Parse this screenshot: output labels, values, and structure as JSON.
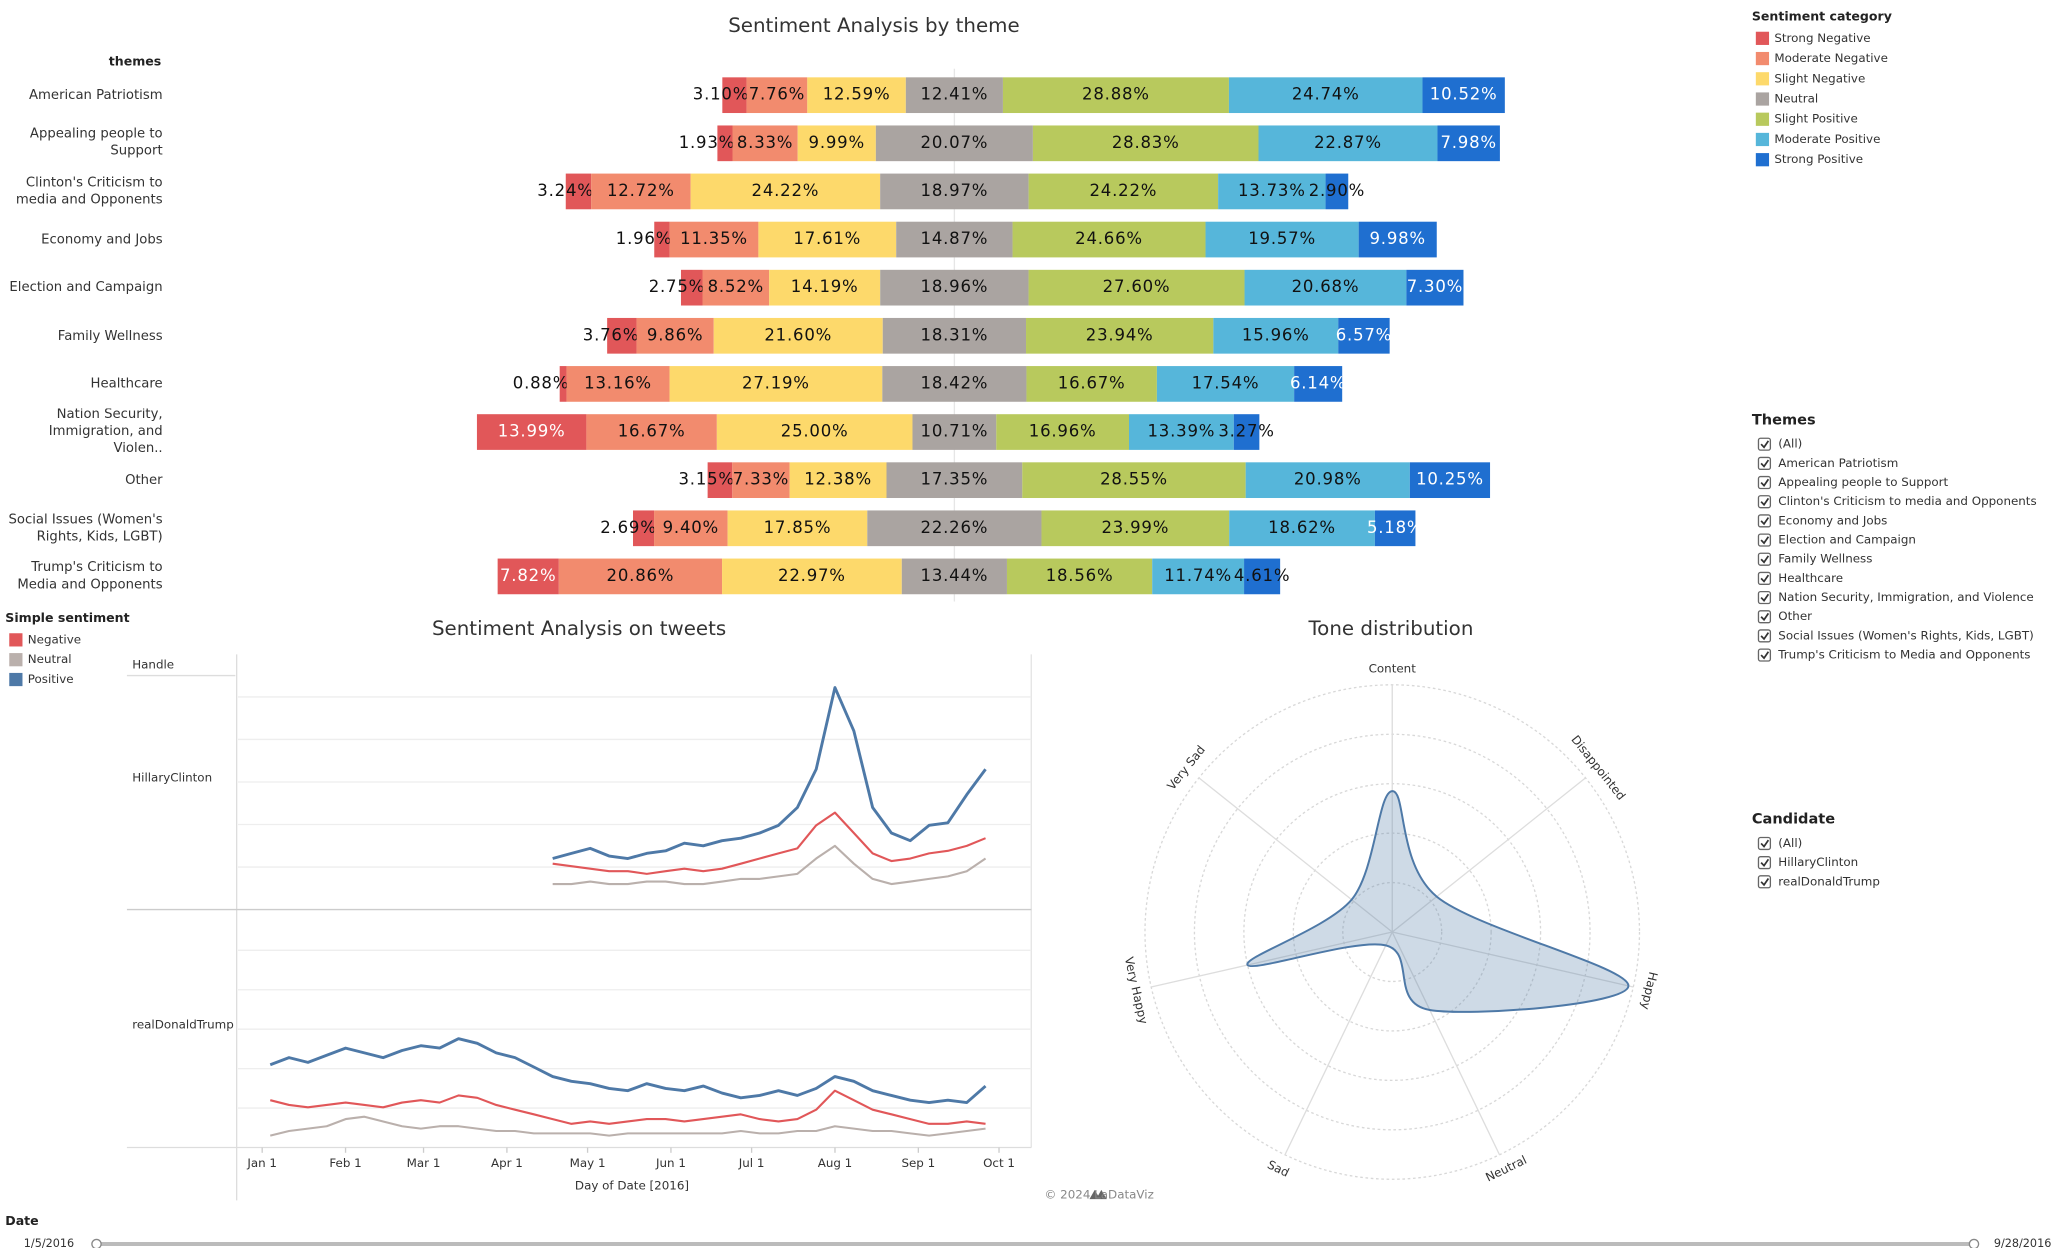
{
  "chart_data": [
    {
      "type": "diverging-bar",
      "title": "Sentiment Analysis by theme",
      "category_header": "themes",
      "legend_title": "Sentiment category",
      "xlim": [
        -100,
        96
      ],
      "categories": [
        "American Patriotism",
        "Appealing people to Support",
        "Clinton's Criticism to media and Opponents",
        "Economy and Jobs",
        "Election and Campaign",
        "Family Wellness",
        "Healthcare",
        "Nation Security, Immigration, and Violen..",
        "Other",
        "Social Issues (Women's Rights, Kids, LGBT)",
        "Trump's Criticism to Media and Opponents"
      ],
      "series": [
        {
          "name": "Strong Negative",
          "color": "#e15759",
          "values": [
            3.1,
            1.93,
            3.24,
            1.96,
            2.75,
            3.76,
            0.88,
            13.99,
            3.15,
            2.69,
            7.82
          ],
          "value_labels": [
            "3.10%",
            "1.93%",
            "3.24%",
            "1.96%",
            "2.75%",
            "3.76%",
            "0.88%",
            "13.99%",
            "3.15%",
            "2.69%",
            "7.82%"
          ]
        },
        {
          "name": "Moderate Negative",
          "color": "#f28b6e",
          "values": [
            7.76,
            8.33,
            12.72,
            11.35,
            8.52,
            9.86,
            13.16,
            16.67,
            7.33,
            9.4,
            20.86
          ],
          "value_labels": [
            "7.76%",
            "8.33%",
            "12.72%",
            "11.35%",
            "8.52%",
            "9.86%",
            "13.16%",
            "16.67%",
            "7.33%",
            "9.40%",
            "20.86%"
          ]
        },
        {
          "name": "Slight Negative",
          "color": "#fdd96b",
          "values": [
            12.59,
            9.99,
            24.22,
            17.61,
            14.19,
            21.6,
            27.19,
            25,
            12.38,
            17.85,
            22.97
          ],
          "value_labels": [
            "12.59%",
            "9.99%",
            "24.22%",
            "17.61%",
            "14.19%",
            "21.60%",
            "27.19%",
            "25.00%",
            "12.38%",
            "17.85%",
            "22.97%"
          ]
        },
        {
          "name": "Neutral",
          "color": "#aaa4a1",
          "values": [
            12.41,
            20.07,
            18.97,
            14.87,
            18.96,
            18.31,
            18.42,
            10.71,
            17.35,
            22.26,
            13.44
          ],
          "value_labels": [
            "12.41%",
            "20.07%",
            "18.97%",
            "14.87%",
            "18.96%",
            "18.31%",
            "18.42%",
            "10.71%",
            "17.35%",
            "22.26%",
            "13.44%"
          ]
        },
        {
          "name": "Slight Positive",
          "color": "#b8c95d",
          "values": [
            28.88,
            28.83,
            24.22,
            24.66,
            27.6,
            23.94,
            16.67,
            16.96,
            28.55,
            23.99,
            18.56
          ],
          "value_labels": [
            "28.88%",
            "28.83%",
            "24.22%",
            "24.66%",
            "27.60%",
            "23.94%",
            "16.67%",
            "16.96%",
            "28.55%",
            "23.99%",
            "18.56%"
          ]
        },
        {
          "name": "Moderate Positive",
          "color": "#56b6da",
          "values": [
            24.74,
            22.87,
            13.73,
            19.57,
            20.68,
            15.96,
            17.54,
            13.39,
            20.98,
            18.62,
            11.74
          ],
          "value_labels": [
            "24.74%",
            "22.87%",
            "13.73%",
            "19.57%",
            "20.68%",
            "15.96%",
            "17.54%",
            "13.39%",
            "20.98%",
            "18.62%",
            "11.74%"
          ]
        },
        {
          "name": "Strong Positive",
          "color": "#1f6fd0",
          "values": [
            10.52,
            7.98,
            2.9,
            9.98,
            7.3,
            6.57,
            6.14,
            3.27,
            10.25,
            5.18,
            4.61
          ],
          "value_labels": [
            "10.52%",
            "7.98%",
            "2.90%",
            "9.98%",
            "7.30%",
            "6.57%",
            "6.14%",
            "3.27%",
            "10.25%",
            "5.18%",
            "4.61%"
          ]
        }
      ]
    },
    {
      "type": "line",
      "title": "Sentiment Analysis on tweets",
      "legend_title": "Simple sentiment",
      "row_header": "Handle",
      "x_label": "Day of Date [2016]",
      "xlim": [
        "2015-12-23",
        "2016-10-13"
      ],
      "ylim": [
        0,
        100
      ],
      "xticks": [
        {
          "value": "2016-01-01",
          "label": "Jan 1"
        },
        {
          "value": "2016-02-01",
          "label": "Feb 1"
        },
        {
          "value": "2016-03-01",
          "label": "Mar 1"
        },
        {
          "value": "2016-04-01",
          "label": "Apr 1"
        },
        {
          "value": "2016-05-01",
          "label": "May 1"
        },
        {
          "value": "2016-06-01",
          "label": "Jun 1"
        },
        {
          "value": "2016-07-01",
          "label": "Jul 1"
        },
        {
          "value": "2016-08-01",
          "label": "Aug 1"
        },
        {
          "value": "2016-09-01",
          "label": "Sep 1"
        },
        {
          "value": "2016-10-01",
          "label": "Oct 1"
        }
      ],
      "x": [
        "2016-01-04",
        "2016-01-11",
        "2016-01-18",
        "2016-01-25",
        "2016-02-01",
        "2016-02-08",
        "2016-02-15",
        "2016-02-22",
        "2016-02-29",
        "2016-03-07",
        "2016-03-14",
        "2016-03-21",
        "2016-03-28",
        "2016-04-04",
        "2016-04-11",
        "2016-04-18",
        "2016-04-25",
        "2016-05-02",
        "2016-05-09",
        "2016-05-16",
        "2016-05-23",
        "2016-05-30",
        "2016-06-06",
        "2016-06-13",
        "2016-06-20",
        "2016-06-27",
        "2016-07-04",
        "2016-07-11",
        "2016-07-18",
        "2016-07-25",
        "2016-08-01",
        "2016-08-08",
        "2016-08-15",
        "2016-08-22",
        "2016-08-29",
        "2016-09-05",
        "2016-09-12",
        "2016-09-19",
        "2016-09-26"
      ],
      "panels": [
        {
          "name": "HillaryClinton",
          "series": [
            {
              "name": "Negative",
              "color": "#e15759",
              "values": [
                null,
                null,
                null,
                null,
                null,
                null,
                null,
                null,
                null,
                null,
                null,
                null,
                null,
                null,
                null,
                18,
                17,
                16,
                15,
                15,
                14,
                15,
                16,
                15,
                16,
                18,
                20,
                22,
                24,
                33,
                38,
                30,
                22,
                19,
                20,
                22,
                23,
                25,
                28
              ]
            },
            {
              "name": "Neutral",
              "color": "#bab0ac",
              "values": [
                null,
                null,
                null,
                null,
                null,
                null,
                null,
                null,
                null,
                null,
                null,
                null,
                null,
                null,
                null,
                10,
                10,
                11,
                10,
                10,
                11,
                11,
                10,
                10,
                11,
                12,
                12,
                13,
                14,
                20,
                25,
                18,
                12,
                10,
                11,
                12,
                13,
                15,
                20
              ]
            },
            {
              "name": "Positive",
              "color": "#4e79a7",
              "values": [
                null,
                null,
                null,
                null,
                null,
                null,
                null,
                null,
                null,
                null,
                null,
                null,
                null,
                null,
                null,
                20,
                22,
                24,
                21,
                20,
                22,
                23,
                26,
                25,
                27,
                28,
                30,
                33,
                40,
                55,
                87,
                70,
                40,
                30,
                27,
                33,
                34,
                45,
                55
              ]
            }
          ]
        },
        {
          "name": "realDonaldTrump",
          "series": [
            {
              "name": "Negative",
              "color": "#e15759",
              "values": [
                20,
                18,
                17,
                18,
                19,
                18,
                17,
                19,
                20,
                19,
                22,
                21,
                18,
                16,
                14,
                12,
                10,
                11,
                10,
                11,
                12,
                12,
                11,
                12,
                13,
                14,
                12,
                11,
                12,
                16,
                24,
                20,
                16,
                14,
                12,
                10,
                10,
                11,
                10
              ]
            },
            {
              "name": "Neutral",
              "color": "#bab0ac",
              "values": [
                5,
                7,
                8,
                9,
                12,
                13,
                11,
                9,
                8,
                9,
                9,
                8,
                7,
                7,
                6,
                6,
                6,
                6,
                5,
                6,
                6,
                6,
                6,
                6,
                6,
                7,
                6,
                6,
                7,
                7,
                9,
                8,
                7,
                7,
                6,
                5,
                6,
                7,
                8
              ]
            },
            {
              "name": "Positive",
              "color": "#4e79a7",
              "values": [
                35,
                38,
                36,
                39,
                42,
                40,
                38,
                41,
                43,
                42,
                46,
                44,
                40,
                38,
                34,
                30,
                28,
                27,
                25,
                24,
                27,
                25,
                24,
                26,
                23,
                21,
                22,
                24,
                22,
                25,
                30,
                28,
                24,
                22,
                20,
                19,
                20,
                19,
                26
              ]
            }
          ]
        }
      ]
    },
    {
      "type": "radar",
      "title": "Tone distribution",
      "rlim": [
        0,
        100
      ],
      "color": "#4e79a7",
      "categories": [
        "Content",
        "Disappointed",
        "Happy",
        "Neutral",
        "Sad",
        "Very Happy",
        "Very Sad"
      ],
      "values": [
        57,
        23,
        98,
        35,
        6,
        60,
        21
      ]
    }
  ],
  "filters": [
    {
      "title": "Themes",
      "options": [
        "(All)",
        "American Patriotism",
        "Appealing people to Support",
        "Clinton's Criticism to media and Opponents",
        "Economy and Jobs",
        "Election and Campaign",
        "Family Wellness",
        "Healthcare",
        "Nation Security, Immigration, and Violence",
        "Other",
        "Social Issues (Women's Rights, Kids, LGBT)",
        "Trump's Criticism to Media and Opponents"
      ]
    },
    {
      "title": "Candidate",
      "options": [
        "(All)",
        "HillaryClinton",
        "realDonaldTrump"
      ]
    }
  ],
  "date_filter": {
    "title": "Date",
    "start": "1/5/2016",
    "end": "9/28/2016"
  },
  "footer": "© 2024 LaDataViz"
}
